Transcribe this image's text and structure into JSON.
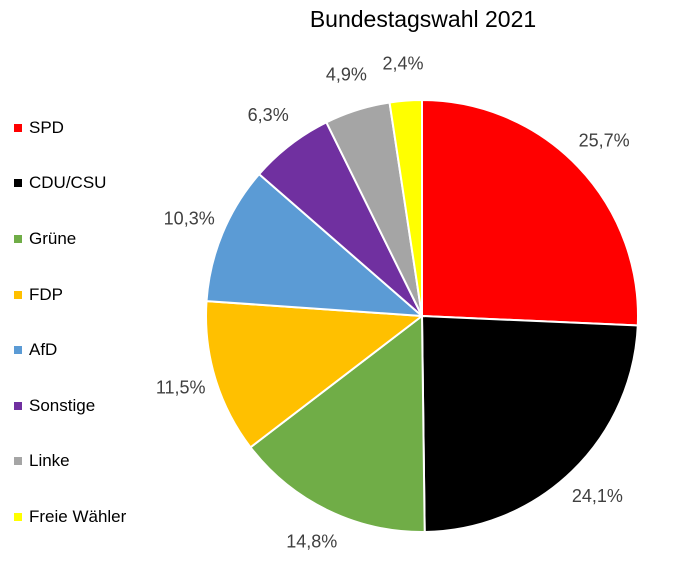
{
  "chart_data": {
    "type": "pie",
    "title": "Bundestagswahl 2021",
    "slices": [
      {
        "name": "SPD",
        "value": 25.7,
        "label": "25,7%",
        "color": "#ff0000"
      },
      {
        "name": "CDU/CSU",
        "value": 24.1,
        "label": "24,1%",
        "color": "#000000"
      },
      {
        "name": "Grüne",
        "value": 14.8,
        "label": "14,8%",
        "color": "#70ad47"
      },
      {
        "name": "FDP",
        "value": 11.5,
        "label": "11,5%",
        "color": "#ffc000"
      },
      {
        "name": "AfD",
        "value": 10.3,
        "label": "10,3%",
        "color": "#5b9bd5"
      },
      {
        "name": "Sonstige",
        "value": 6.3,
        "label": "6,3%",
        "color": "#7030a0"
      },
      {
        "name": "Linke",
        "value": 4.9,
        "label": "4,9%",
        "color": "#a5a5a5"
      },
      {
        "name": "Freie Wähler",
        "value": 2.4,
        "label": "2,4%",
        "color": "#ffff00"
      }
    ],
    "legend_position": "left"
  }
}
